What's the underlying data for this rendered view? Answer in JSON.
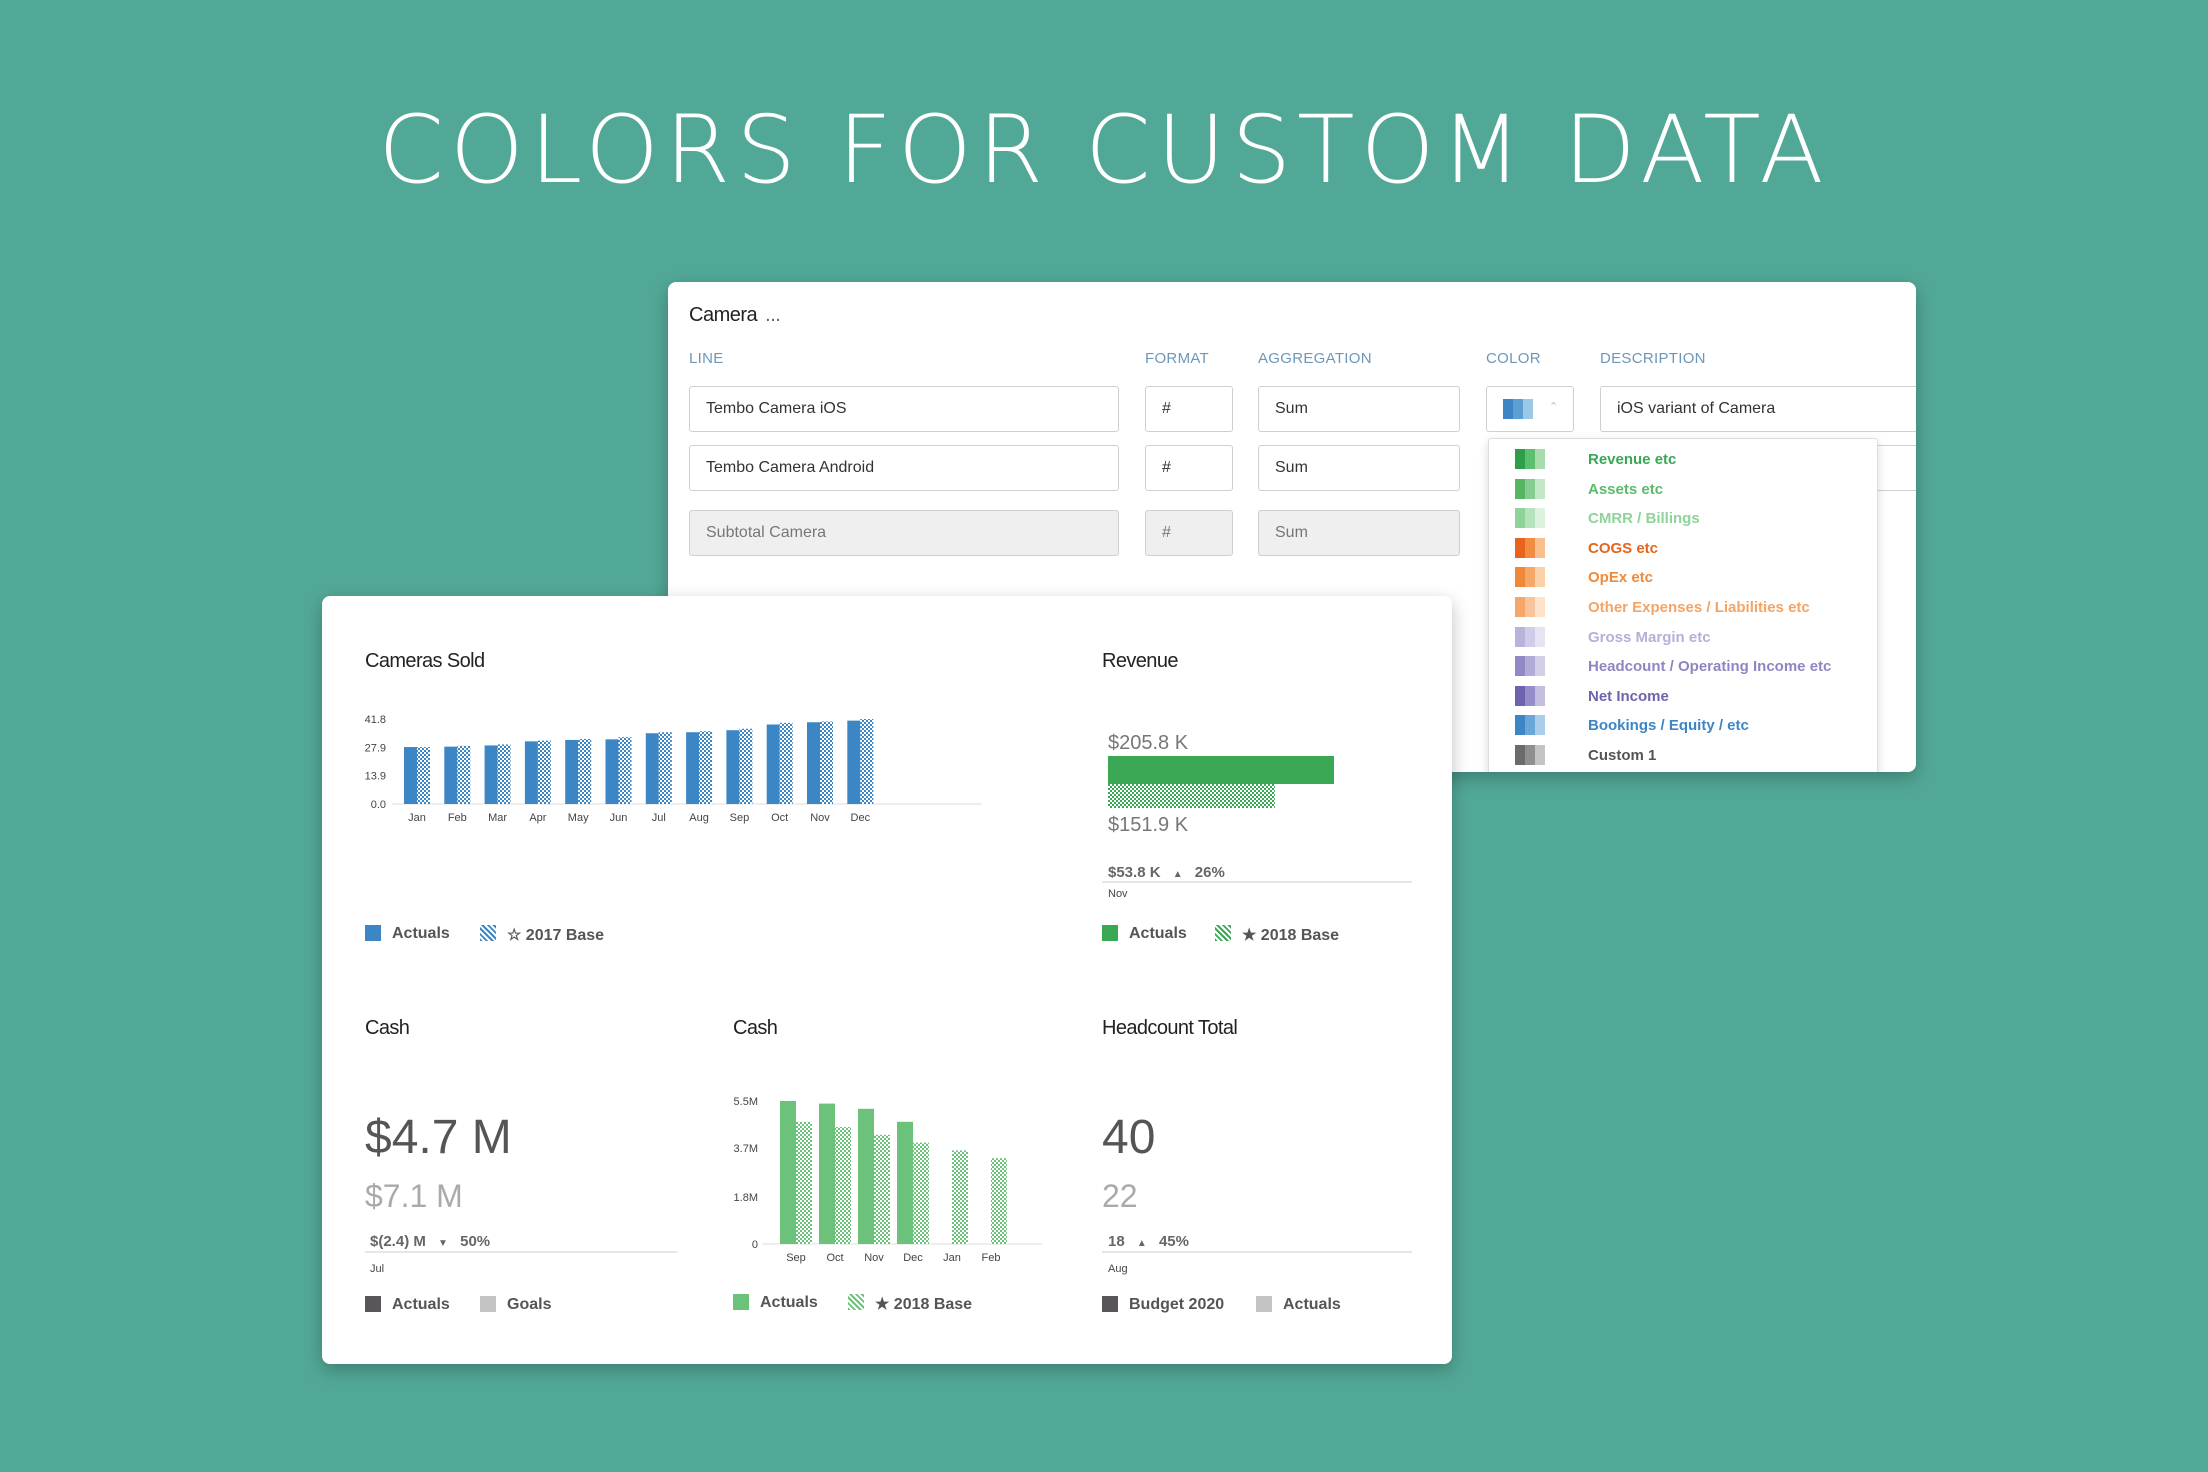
{
  "hero": {
    "title": "COLORS FOR CUSTOM DATA"
  },
  "editor": {
    "title": "Camera",
    "title_more": "...",
    "columns": {
      "line": "LINE",
      "format": "FORMAT",
      "aggregation": "AGGREGATION",
      "color": "COLOR",
      "description": "DESCRIPTION"
    },
    "rows": [
      {
        "line": "Tembo Camera iOS",
        "format": "#",
        "aggregation": "Sum",
        "description": "iOS variant of Camera"
      },
      {
        "line": "Tembo Camera Android",
        "format": "#",
        "aggregation": "Sum"
      },
      {
        "line": "Subtotal Camera",
        "format": "#",
        "aggregation": "Sum",
        "disabled": true
      }
    ],
    "color_dropdown": {
      "selected_swatch": [
        "#3d86c6",
        "#5b9fd3",
        "#9cc8e8"
      ],
      "options": [
        {
          "label": "Revenue etc",
          "color": "#3aa755",
          "swatch": [
            "#2e9e4a",
            "#5cbf6e",
            "#a6dcae"
          ]
        },
        {
          "label": "Assets etc",
          "color": "#5cbb6a",
          "swatch": [
            "#55b563",
            "#86cc8f",
            "#c2e8c6"
          ]
        },
        {
          "label": "CMRR / Billings",
          "color": "#8fd39a",
          "swatch": [
            "#8fd39a",
            "#b6e3bc",
            "#dcf2df"
          ]
        },
        {
          "label": "COGS etc",
          "color": "#e4661e",
          "swatch": [
            "#e8641c",
            "#f28c43",
            "#f9bf8f"
          ]
        },
        {
          "label": "OpEx etc",
          "color": "#ef8a3a",
          "swatch": [
            "#f0883a",
            "#f6a868",
            "#fbd1a8"
          ]
        },
        {
          "label": "Other Expenses / Liabilities etc",
          "color": "#f3a467",
          "swatch": [
            "#f5a66b",
            "#f9c49b",
            "#fde2cc"
          ]
        },
        {
          "label": "Gross Margin etc",
          "color": "#b4b0d8",
          "swatch": [
            "#b7b3db",
            "#cfcce7",
            "#e6e4f3"
          ]
        },
        {
          "label": "Headcount / Operating Income etc",
          "color": "#8e86c2",
          "swatch": [
            "#9189c6",
            "#b1abd7",
            "#d3cfe9"
          ]
        },
        {
          "label": "Net Income",
          "color": "#6e64ad",
          "swatch": [
            "#6c63af",
            "#948dc7",
            "#c2bee0"
          ]
        },
        {
          "label": "Bookings / Equity / etc",
          "color": "#3d86c6",
          "swatch": [
            "#3d86c6",
            "#6aa6d8",
            "#a9cdea"
          ]
        },
        {
          "label": "Custom 1",
          "color": "#555555",
          "swatch": [
            "#6b6b6b",
            "#8f8f8f",
            "#c4c4c4"
          ]
        }
      ]
    }
  },
  "dashboard": {
    "cameras_sold": {
      "title": "Cameras Sold",
      "legend": [
        "Actuals",
        "☆ 2017 Base"
      ]
    },
    "revenue": {
      "title": "Revenue",
      "value_primary": "$205.8 K",
      "value_secondary": "$151.9 K",
      "delta": "$53.8 K",
      "delta_pct": "26%",
      "period": "Nov",
      "legend": [
        "Actuals",
        "★ 2018 Base"
      ]
    },
    "cash_kpi": {
      "title": "Cash",
      "value_primary": "$4.7 M",
      "value_secondary": "$7.1 M",
      "delta": "$(2.4) M",
      "delta_pct": "50%",
      "period": "Jul",
      "legend": [
        "Actuals",
        "Goals"
      ]
    },
    "cash_chart": {
      "title": "Cash",
      "legend": [
        "Actuals",
        "★ 2018 Base"
      ]
    },
    "headcount": {
      "title": "Headcount Total",
      "value_primary": "40",
      "value_secondary": "22",
      "delta": "18",
      "delta_pct": "45%",
      "period": "Aug",
      "legend": [
        "Budget 2020",
        "Actuals"
      ]
    }
  },
  "chart_data": [
    {
      "type": "bar",
      "title": "Cameras Sold",
      "categories": [
        "Jan",
        "Feb",
        "Mar",
        "Apr",
        "May",
        "Jun",
        "Jul",
        "Aug",
        "Sep",
        "Oct",
        "Nov",
        "Dec"
      ],
      "yticks": [
        "0.0",
        "13.9",
        "27.9",
        "41.8"
      ],
      "ylim": [
        0,
        41.8
      ],
      "series": [
        {
          "name": "Actuals",
          "values": [
            28.0,
            28.2,
            28.8,
            30.8,
            31.5,
            31.8,
            34.8,
            35.3,
            36.3,
            39.1,
            40.2,
            41.0
          ]
        },
        {
          "name": "☆ 2017 Base",
          "values": [
            28.0,
            28.6,
            29.3,
            31.2,
            32.0,
            32.9,
            35.3,
            35.8,
            37.0,
            39.9,
            40.6,
            41.8
          ]
        }
      ],
      "colors": {
        "actuals": "#3d86c6"
      }
    },
    {
      "type": "bar",
      "title": "Revenue",
      "categories": [
        "Nov"
      ],
      "series": [
        {
          "name": "Actuals",
          "values": [
            205.8
          ]
        },
        {
          "name": "★ 2018 Base",
          "values": [
            151.9
          ]
        }
      ],
      "orientation": "horizontal",
      "colors": {
        "actuals": "#3aa755"
      }
    },
    {
      "type": "bar",
      "title": "Cash",
      "categories": [
        "Sep",
        "Oct",
        "Nov",
        "Dec",
        "Jan",
        "Feb"
      ],
      "yticks": [
        "0",
        "1.8M",
        "3.7M",
        "5.5M"
      ],
      "ylim": [
        0,
        5.5
      ],
      "series": [
        {
          "name": "Actuals",
          "values": [
            5.5,
            5.4,
            5.2,
            4.7,
            null,
            null
          ]
        },
        {
          "name": "★ 2018 Base",
          "values": [
            4.7,
            4.5,
            4.2,
            3.9,
            3.6,
            3.3
          ]
        }
      ],
      "colors": {
        "actuals": "#6cc27a"
      }
    }
  ]
}
